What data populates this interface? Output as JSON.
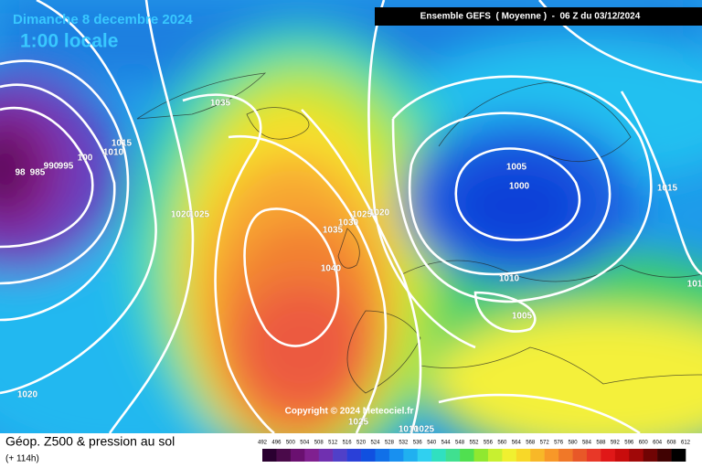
{
  "header": {
    "date": "Dimanche 8 decembre 2024",
    "time": "1:00 locale",
    "run": "Ensemble GEFS  ( Moyenne )  -  06 Z du 03/12/2024"
  },
  "isobar_labels": [
    "1035",
    "1015",
    "1010",
    "100",
    "995",
    "990",
    "985",
    "98",
    "1020",
    "1025",
    "1035",
    "1030",
    "1025",
    "1020",
    "1040",
    "1005",
    "1000",
    "1015",
    "1010",
    "1005",
    "1020",
    "1025",
    "1010",
    "1025",
    "101"
  ],
  "copyright": "Copyright © 2024 Meteociel.fr",
  "footer": {
    "title": "Géop. Z500 & pression au sol",
    "lead": "(+ 114h)"
  },
  "colorbar": {
    "ticks": [
      492,
      496,
      500,
      504,
      508,
      512,
      516,
      520,
      524,
      528,
      532,
      536,
      540,
      544,
      548,
      552,
      556,
      560,
      564,
      568,
      572,
      576,
      580,
      584,
      588,
      592,
      596,
      600,
      604,
      608,
      612
    ]
  }
}
